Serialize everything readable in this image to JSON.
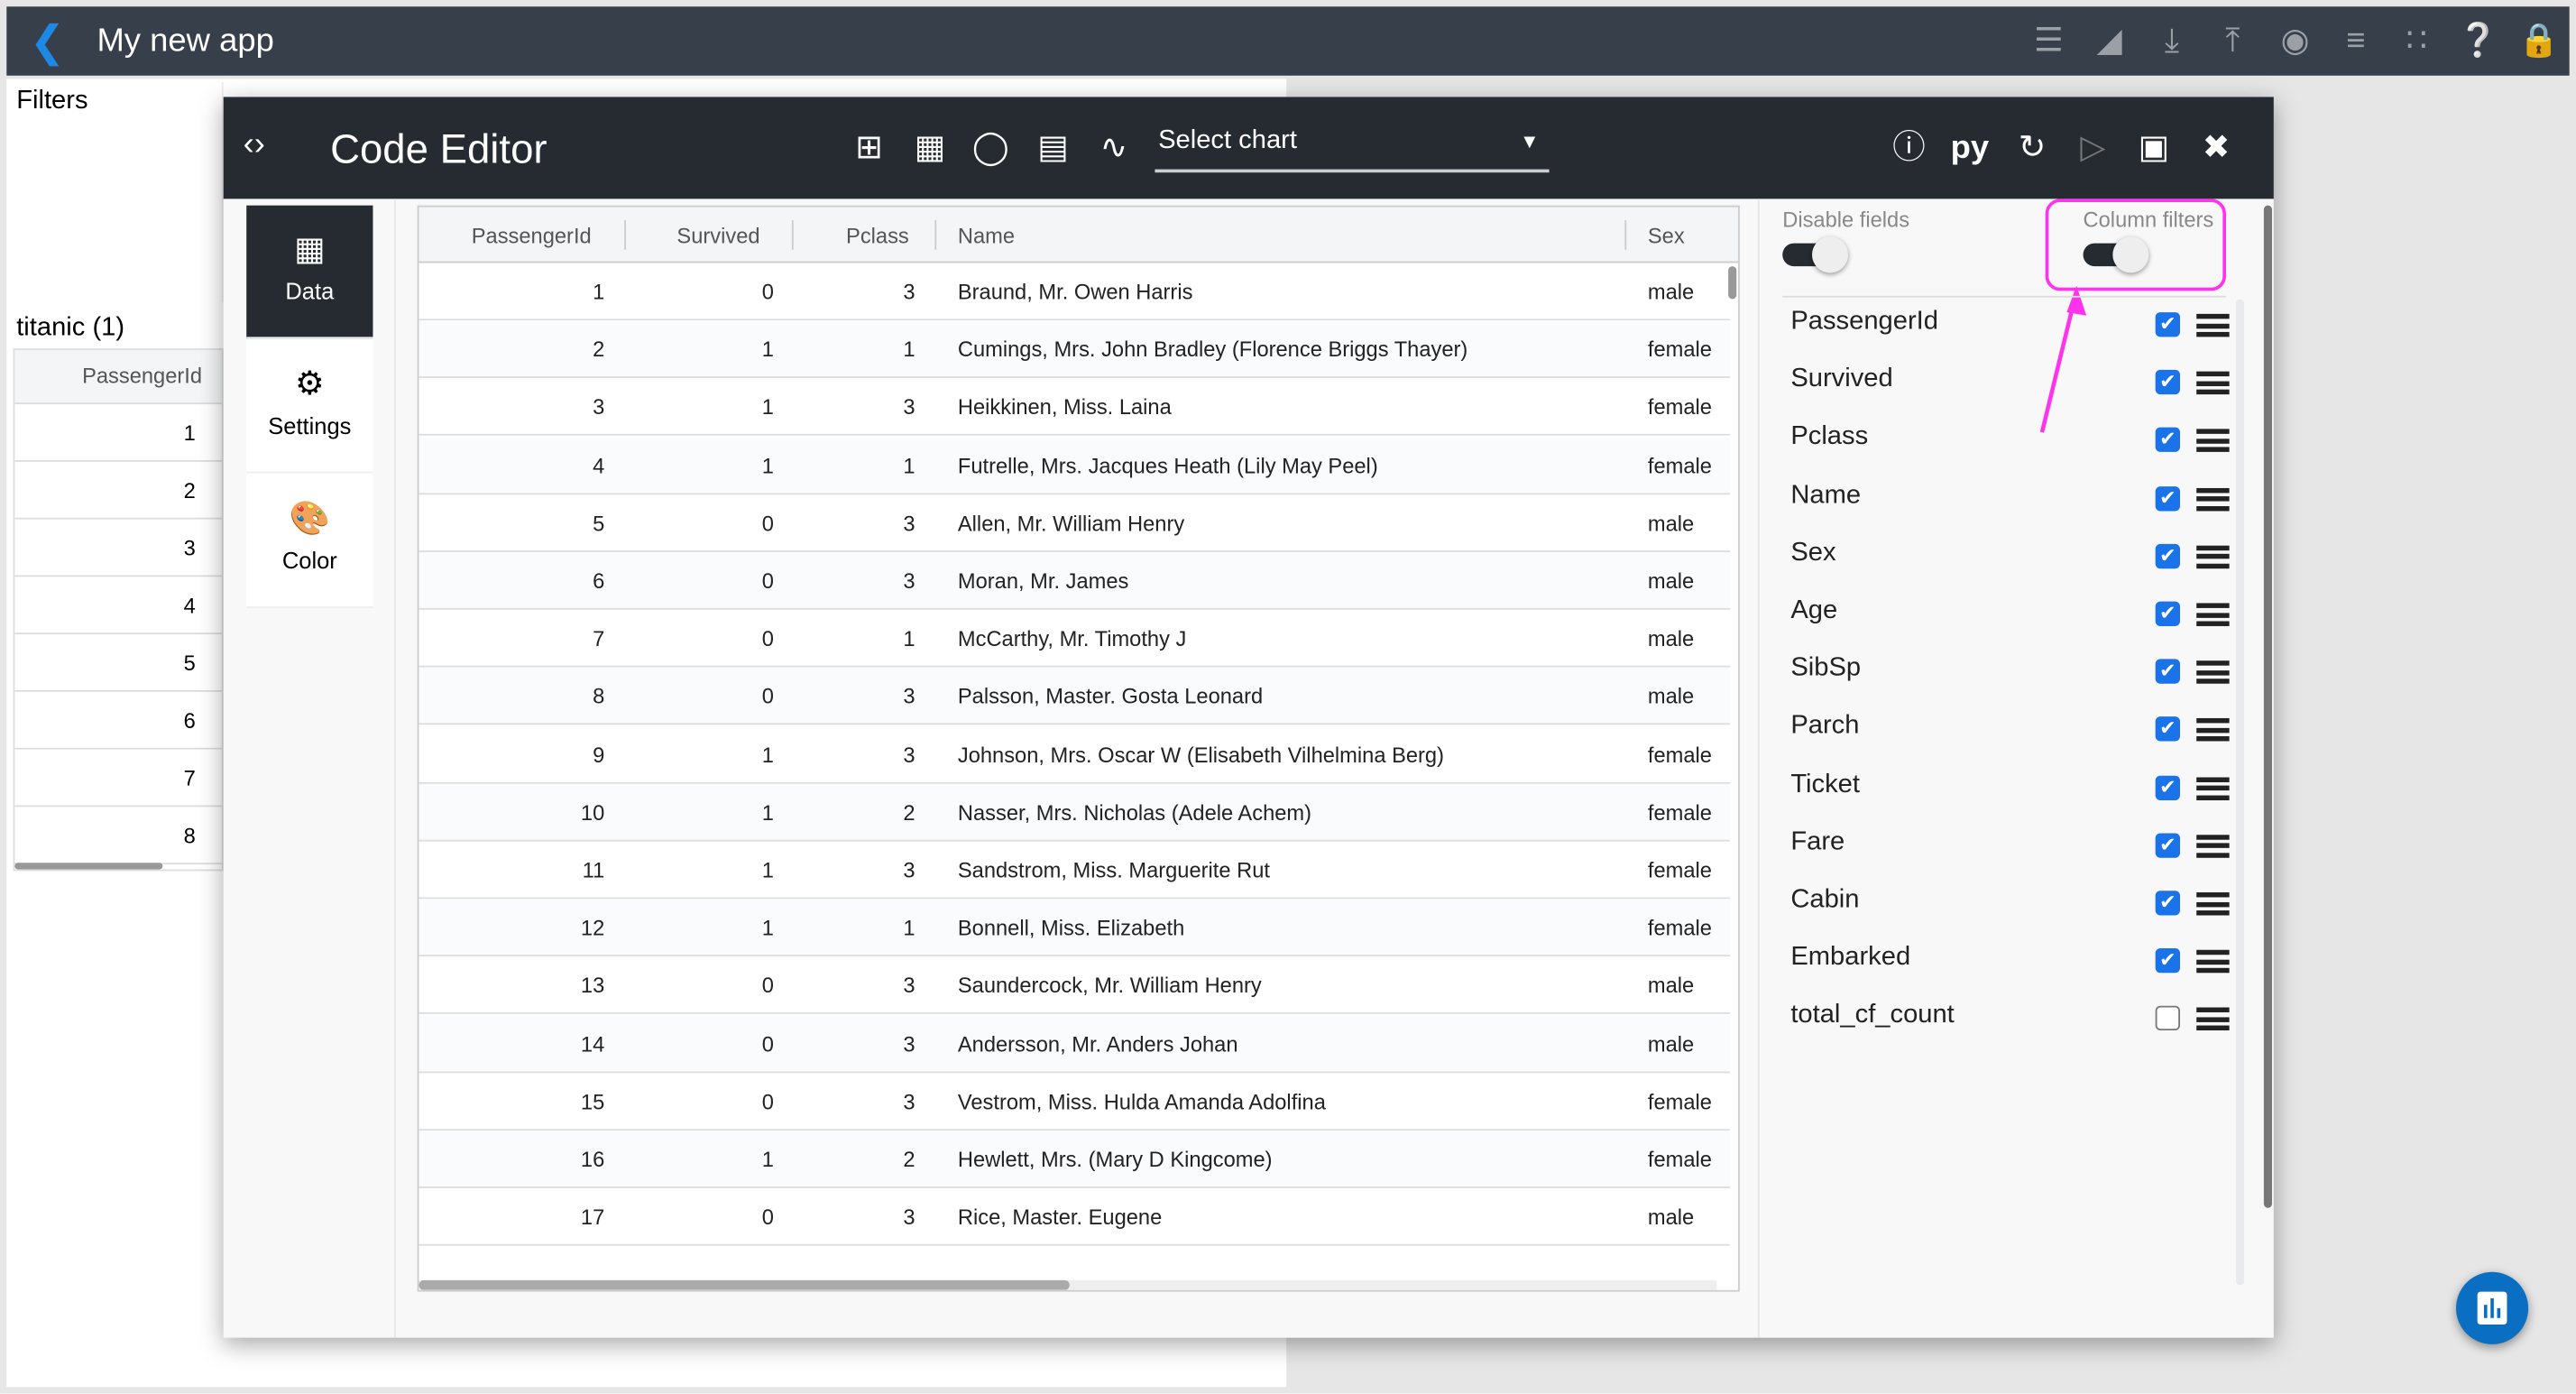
{
  "app": {
    "title": "My new app",
    "back_icon": "chevron-left-icon",
    "toolbar_icons": [
      "filter-icon",
      "chart-settings-icon",
      "download-icon",
      "upload-icon",
      "globe-icon",
      "align-left-icon",
      "grid-icon",
      "help-icon",
      "lock-icon"
    ]
  },
  "left": {
    "filters_label": "Filters",
    "dataset_label": "titanic (1)",
    "column_header": "PassengerId",
    "values": [
      "1",
      "2",
      "3",
      "4",
      "5",
      "6",
      "7",
      "8"
    ]
  },
  "editor": {
    "title": "Code Editor",
    "select_chart": "Select chart",
    "python_label": "py",
    "nav": [
      {
        "label": "Data",
        "icon": "bar-chart-icon"
      },
      {
        "label": "Settings",
        "icon": "gear-icon"
      },
      {
        "label": "Color",
        "icon": "palette-icon"
      }
    ]
  },
  "table": {
    "columns": [
      "PassengerId",
      "Survived",
      "Pclass",
      "Name",
      "Sex"
    ],
    "rows": [
      [
        "1",
        "0",
        "3",
        "Braund, Mr. Owen Harris",
        "male"
      ],
      [
        "2",
        "1",
        "1",
        "Cumings, Mrs. John Bradley (Florence Briggs Thayer)",
        "female"
      ],
      [
        "3",
        "1",
        "3",
        "Heikkinen, Miss. Laina",
        "female"
      ],
      [
        "4",
        "1",
        "1",
        "Futrelle, Mrs. Jacques Heath (Lily May Peel)",
        "female"
      ],
      [
        "5",
        "0",
        "3",
        "Allen, Mr. William Henry",
        "male"
      ],
      [
        "6",
        "0",
        "3",
        "Moran, Mr. James",
        "male"
      ],
      [
        "7",
        "0",
        "1",
        "McCarthy, Mr. Timothy J",
        "male"
      ],
      [
        "8",
        "0",
        "3",
        "Palsson, Master. Gosta Leonard",
        "male"
      ],
      [
        "9",
        "1",
        "3",
        "Johnson, Mrs. Oscar W (Elisabeth Vilhelmina Berg)",
        "female"
      ],
      [
        "10",
        "1",
        "2",
        "Nasser, Mrs. Nicholas (Adele Achem)",
        "female"
      ],
      [
        "11",
        "1",
        "3",
        "Sandstrom, Miss. Marguerite Rut",
        "female"
      ],
      [
        "12",
        "1",
        "1",
        "Bonnell, Miss. Elizabeth",
        "female"
      ],
      [
        "13",
        "0",
        "3",
        "Saundercock, Mr. William Henry",
        "male"
      ],
      [
        "14",
        "0",
        "3",
        "Andersson, Mr. Anders Johan",
        "male"
      ],
      [
        "15",
        "0",
        "3",
        "Vestrom, Miss. Hulda Amanda Adolfina",
        "female"
      ],
      [
        "16",
        "1",
        "2",
        "Hewlett, Mrs. (Mary D Kingcome)",
        "female"
      ],
      [
        "17",
        "0",
        "3",
        "Rice, Master. Eugene",
        "male"
      ]
    ]
  },
  "fields_panel": {
    "disable_fields_label": "Disable fields",
    "disable_fields_on": true,
    "column_filters_label": "Column filters",
    "column_filters_on": true,
    "highlight_color": "#ff33ee",
    "fields": [
      {
        "name": "PassengerId",
        "checked": true
      },
      {
        "name": "Survived",
        "checked": true
      },
      {
        "name": "Pclass",
        "checked": true
      },
      {
        "name": "Name",
        "checked": true
      },
      {
        "name": "Sex",
        "checked": true
      },
      {
        "name": "Age",
        "checked": true
      },
      {
        "name": "SibSp",
        "checked": true
      },
      {
        "name": "Parch",
        "checked": true
      },
      {
        "name": "Ticket",
        "checked": true
      },
      {
        "name": "Fare",
        "checked": true
      },
      {
        "name": "Cabin",
        "checked": true
      },
      {
        "name": "Embarked",
        "checked": true
      },
      {
        "name": "total_cf_count",
        "checked": false
      }
    ]
  },
  "colors": {
    "topbar": "#37404a",
    "editor_header": "#262b32",
    "checkbox": "#1a73e8",
    "fab": "#0a6fc2"
  }
}
